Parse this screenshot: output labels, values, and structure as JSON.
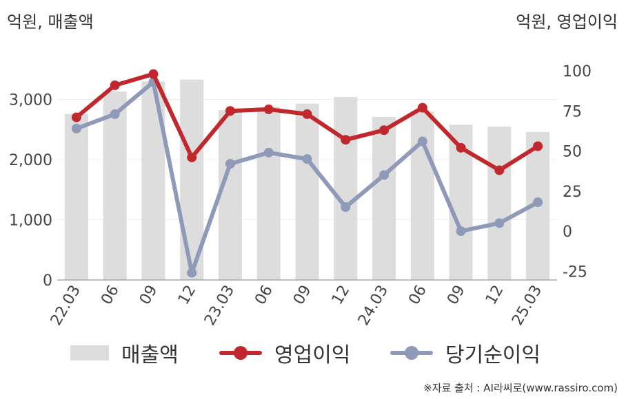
{
  "chart_data": {
    "type": "bar",
    "left_axis_unit": "억원, 매출액",
    "right_axis_unit": "억원, 영업이익",
    "categories": [
      "22.03",
      "06",
      "09",
      "12",
      "23.03",
      "06",
      "09",
      "12",
      "24.03",
      "06",
      "09",
      "12",
      "25.03"
    ],
    "left_axis": {
      "ylim": [
        0,
        3500
      ],
      "ticks": [
        0,
        1000,
        2000,
        3000
      ],
      "tick_labels": [
        "0",
        "1,000",
        "2,000",
        "3,000"
      ]
    },
    "right_axis": {
      "ylim": [
        -30,
        120
      ],
      "ticks": [
        -25,
        0,
        25,
        50,
        75,
        100
      ],
      "tick_labels": [
        "-25",
        "0",
        "25",
        "50",
        "75",
        "100"
      ]
    },
    "series": [
      {
        "name": "매출액",
        "type": "bar",
        "axis": "left",
        "color": "#dddddd",
        "values": [
          2760,
          3130,
          3300,
          3330,
          2820,
          2870,
          2930,
          3040,
          2710,
          2800,
          2580,
          2550,
          2460
        ]
      },
      {
        "name": "영업이익",
        "type": "line",
        "axis": "right",
        "color": "#c0282e",
        "values": [
          71,
          91,
          98,
          46,
          75,
          76,
          73,
          57,
          63,
          77,
          52,
          38,
          53
        ]
      },
      {
        "name": "당기순이익",
        "type": "line",
        "axis": "right",
        "color": "#8e9ab7",
        "values": [
          64,
          73,
          93,
          -26,
          42,
          49,
          45,
          15,
          35,
          56,
          0,
          5,
          18
        ]
      }
    ],
    "grid": true,
    "legend_position": "bottom"
  },
  "legend": [
    {
      "label": "매출액",
      "kind": "bar",
      "color": "#dddddd"
    },
    {
      "label": "영업이익",
      "kind": "line",
      "color": "#c0282e"
    },
    {
      "label": "당기순이익",
      "kind": "line",
      "color": "#8e9ab7"
    }
  ],
  "source": "※자료 출처 : AI라씨로(www.rassiro.com)"
}
